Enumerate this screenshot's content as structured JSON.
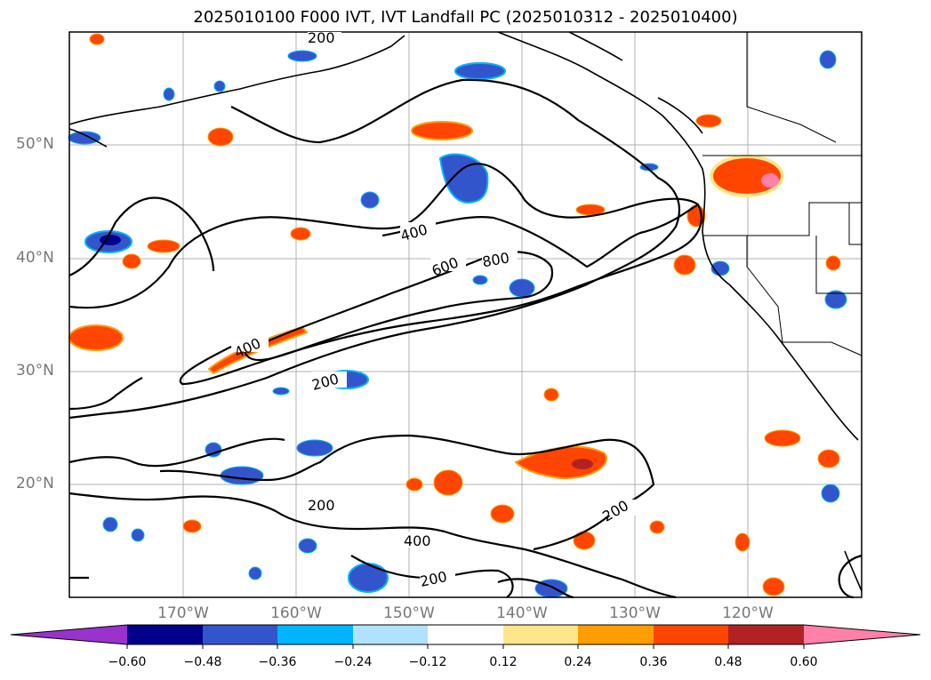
{
  "title": "2025010100 F000 IVT, IVT Landfall PC (2025010312 - 2025010400)",
  "lat_labels": [
    "50°N",
    "40°N",
    "30°N",
    "20°N"
  ],
  "lon_labels": [
    "170°W",
    "160°W",
    "150°W",
    "140°W",
    "130°W",
    "120°W"
  ],
  "contour_labels": [
    "200",
    "400",
    "600",
    "800",
    "400",
    "200",
    "200",
    "400",
    "200",
    "200"
  ],
  "colorbar": {
    "ticks": [
      "−0.60",
      "−0.48",
      "−0.36",
      "−0.24",
      "−0.12",
      "0.12",
      "0.24",
      "0.36",
      "0.48",
      "0.60"
    ],
    "colors": [
      "#9933cc",
      "#00008b",
      "#3355cc",
      "#00b4ff",
      "#b0e2ff",
      "#ffffff",
      "#ffe68a",
      "#ff9e00",
      "#ff4500",
      "#b22222",
      "#ff80a8"
    ]
  },
  "colors": {
    "neg_strong": "#00008b",
    "neg_mid": "#3355cc",
    "neg_light": "#00b4ff",
    "pos_light": "#ffe68a",
    "pos_mid": "#ff9e00",
    "pos_strong": "#ff4500",
    "pos_darkest": "#b22222",
    "pos_max": "#ff80a8"
  }
}
